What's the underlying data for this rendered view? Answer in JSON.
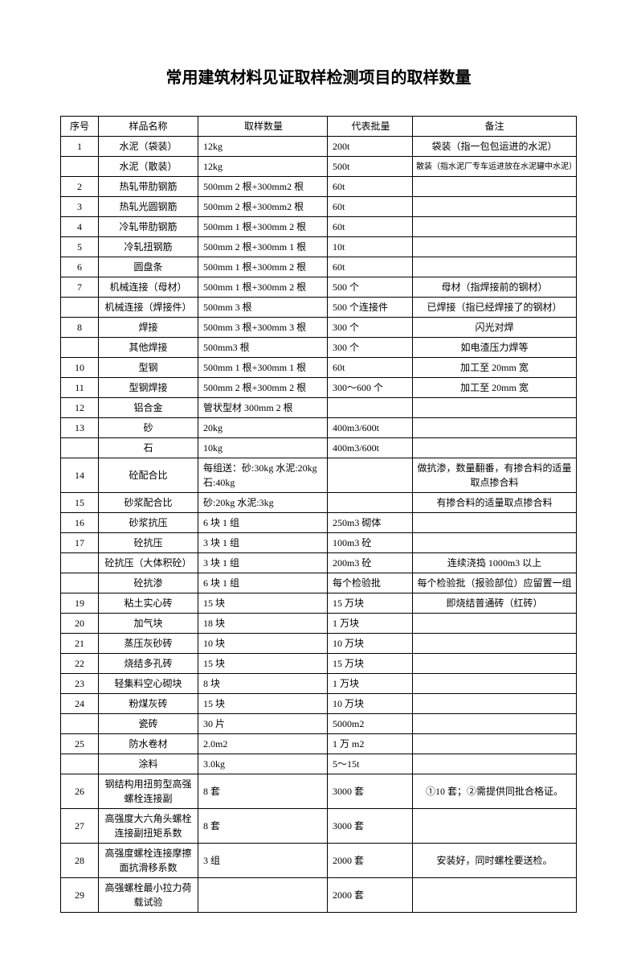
{
  "title": "常用建筑材料见证取样检测项目的取样数量",
  "headers": [
    "序号",
    "样品名称",
    "取样数量",
    "代表批量",
    "备注"
  ],
  "rows": [
    {
      "seq": "1",
      "name": "水泥（袋装）",
      "qty": "12kg",
      "batch": "200t",
      "note": "袋装（指一包包运进的水泥）"
    },
    {
      "seq": "",
      "name": "水泥（散装）",
      "qty": "12kg",
      "batch": "500t",
      "note": "散装（指水泥厂专车运进放在水泥罐中水泥）",
      "small": true
    },
    {
      "seq": "2",
      "name": "热轧带肋钢筋",
      "qty": "500mm 2 根+300mm2 根",
      "batch": "60t",
      "note": ""
    },
    {
      "seq": "3",
      "name": "热轧光圆钢筋",
      "qty": "500mm 2 根+300mm2 根",
      "batch": "60t",
      "note": ""
    },
    {
      "seq": "4",
      "name": "冷轧带肋钢筋",
      "qty": "500mm 1 根+300mm 2 根",
      "batch": "60t",
      "note": ""
    },
    {
      "seq": "5",
      "name": "冷轧扭钢筋",
      "qty": "500mm 2 根+300mm 1 根",
      "batch": "10t",
      "note": ""
    },
    {
      "seq": "6",
      "name": "圆盘条",
      "qty": "500mm 1 根+300mm 2 根",
      "batch": "60t",
      "note": ""
    },
    {
      "seq": "7",
      "name": "机械连接（母材）",
      "qty": "500mm 1 根+300mm 2 根",
      "batch": "500 个",
      "note": "母材（指焊接前的钢材）"
    },
    {
      "seq": "",
      "name": "机械连接（焊接件）",
      "qty": "500mm 3 根",
      "batch": "500 个连接件",
      "note": "已焊接（指已经焊接了的钢材）"
    },
    {
      "seq": "8",
      "name": "焊接",
      "qty": "500mm 3 根+300mm 3 根",
      "batch": "300 个",
      "note": "闪光对焊"
    },
    {
      "seq": "",
      "name": "其他焊接",
      "qty": "500mm3 根",
      "batch": "300 个",
      "note": "如电渣压力焊等"
    },
    {
      "seq": "10",
      "name": "型钢",
      "qty": "500mm 1 根+300mm 1 根",
      "batch": "60t",
      "note": "加工至 20mm 宽"
    },
    {
      "seq": "11",
      "name": "型钢焊接",
      "qty": "500mm 2 根+300mm 2 根",
      "batch": "300～600 个",
      "note": "加工至 20mm 宽"
    },
    {
      "seq": "12",
      "name": "铝合金",
      "qty": "管状型材 300mm 2 根",
      "batch": "",
      "note": ""
    },
    {
      "seq": "13",
      "name": "砂",
      "qty": "20kg",
      "batch": "400m3/600t",
      "note": ""
    },
    {
      "seq": "",
      "name": "石",
      "qty": "10kg",
      "batch": "400m3/600t",
      "note": ""
    },
    {
      "seq": "14",
      "name": "砼配合比",
      "qty": "每组送：砂:30kg 水泥:20kg 石:40kg",
      "batch": "",
      "note": "做抗渗，数量翻番，有掺合料的适量取点掺合料"
    },
    {
      "seq": "15",
      "name": "砂浆配合比",
      "qty": "砂:20kg 水泥:3kg",
      "batch": "",
      "note": "有掺合料的适量取点掺合料"
    },
    {
      "seq": "16",
      "name": "砂浆抗压",
      "qty": "6 块 1 组",
      "batch": "250m3 砌体",
      "note": ""
    },
    {
      "seq": "17",
      "name": "砼抗压",
      "qty": "3 块 1 组",
      "batch": "100m3 砼",
      "note": ""
    },
    {
      "seq": "",
      "name": "砼抗压（大体积砼）",
      "qty": "3 块 1 组",
      "batch": "200m3 砼",
      "note": "连续浇捣 1000m3 以上"
    },
    {
      "seq": "",
      "name": "砼抗渗",
      "qty": "6 块 1 组",
      "batch": "每个检验批",
      "note": "每个检验批（报验部位）应留置一组"
    },
    {
      "seq": "19",
      "name": "粘土实心砖",
      "qty": "15 块",
      "batch": "15 万块",
      "note": "即烧结普通砖（红砖）"
    },
    {
      "seq": "20",
      "name": "加气块",
      "qty": "18 块",
      "batch": "1 万块",
      "note": ""
    },
    {
      "seq": "21",
      "name": "蒸压灰砂砖",
      "qty": "10 块",
      "batch": "10 万块",
      "note": ""
    },
    {
      "seq": "22",
      "name": "烧结多孔砖",
      "qty": "15 块",
      "batch": "15 万块",
      "note": ""
    },
    {
      "seq": "23",
      "name": "轻集料空心砌块",
      "qty": "8 块",
      "batch": "1 万块",
      "note": ""
    },
    {
      "seq": "24",
      "name": "粉煤灰砖",
      "qty": "15 块",
      "batch": "10 万块",
      "note": ""
    },
    {
      "seq": "",
      "name": "瓷砖",
      "qty": "30 片",
      "batch": "5000m2",
      "note": ""
    },
    {
      "seq": "25",
      "name": "防水卷材",
      "qty": "2.0m2",
      "batch": "1 万 m2",
      "note": ""
    },
    {
      "seq": "",
      "name": "涂料",
      "qty": "3.0kg",
      "batch": "5～15t",
      "note": ""
    },
    {
      "seq": "26",
      "name": "钢结构用扭剪型高强螺栓连接副",
      "qty": "8 套",
      "batch": "3000 套",
      "note": "①10 套；②需提供同批合格证。"
    },
    {
      "seq": "27",
      "name": "高强度大六角头螺栓连接副扭矩系数",
      "qty": "8 套",
      "batch": "3000 套",
      "note": ""
    },
    {
      "seq": "28",
      "name": "高强度螺栓连接摩擦面抗滑移系数",
      "qty": "3 组",
      "batch": "2000 套",
      "note": "安装好，同时螺栓要送检。"
    },
    {
      "seq": "29",
      "name": "高强螺栓最小拉力荷载试验",
      "qty": "",
      "batch": "2000 套",
      "note": ""
    }
  ]
}
